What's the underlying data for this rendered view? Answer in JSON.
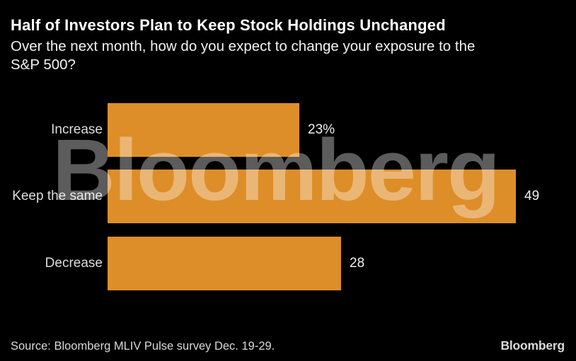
{
  "header": {
    "title": "Half of Investors Plan to Keep Stock Holdings Unchanged",
    "subtitle_line1": "Over the next month, how do you expect to change your exposure to the",
    "subtitle_line2": "S&P 500?"
  },
  "chart_data": {
    "type": "bar",
    "orientation": "horizontal",
    "title": "Half of Investors Plan to Keep Stock Holdings Unchanged",
    "subtitle": "Over the next month, how do you expect to change your exposure to the S&P 500?",
    "categories": [
      "Increase",
      "Keep the same",
      "Decrease"
    ],
    "values": [
      23,
      49,
      28
    ],
    "value_labels": [
      "23%",
      "49",
      "28"
    ],
    "unit": "percent",
    "xlim": [
      0,
      49
    ],
    "grid": false,
    "legend": false,
    "bar_color": "#de8e28",
    "background_color": "#000000",
    "label_color": "#dcdcdc"
  },
  "watermark": {
    "text": "Bloomberg"
  },
  "footer": {
    "source": "Source: Bloomberg MLIV Pulse survey Dec. 19-29.",
    "logo": "Bloomberg"
  }
}
